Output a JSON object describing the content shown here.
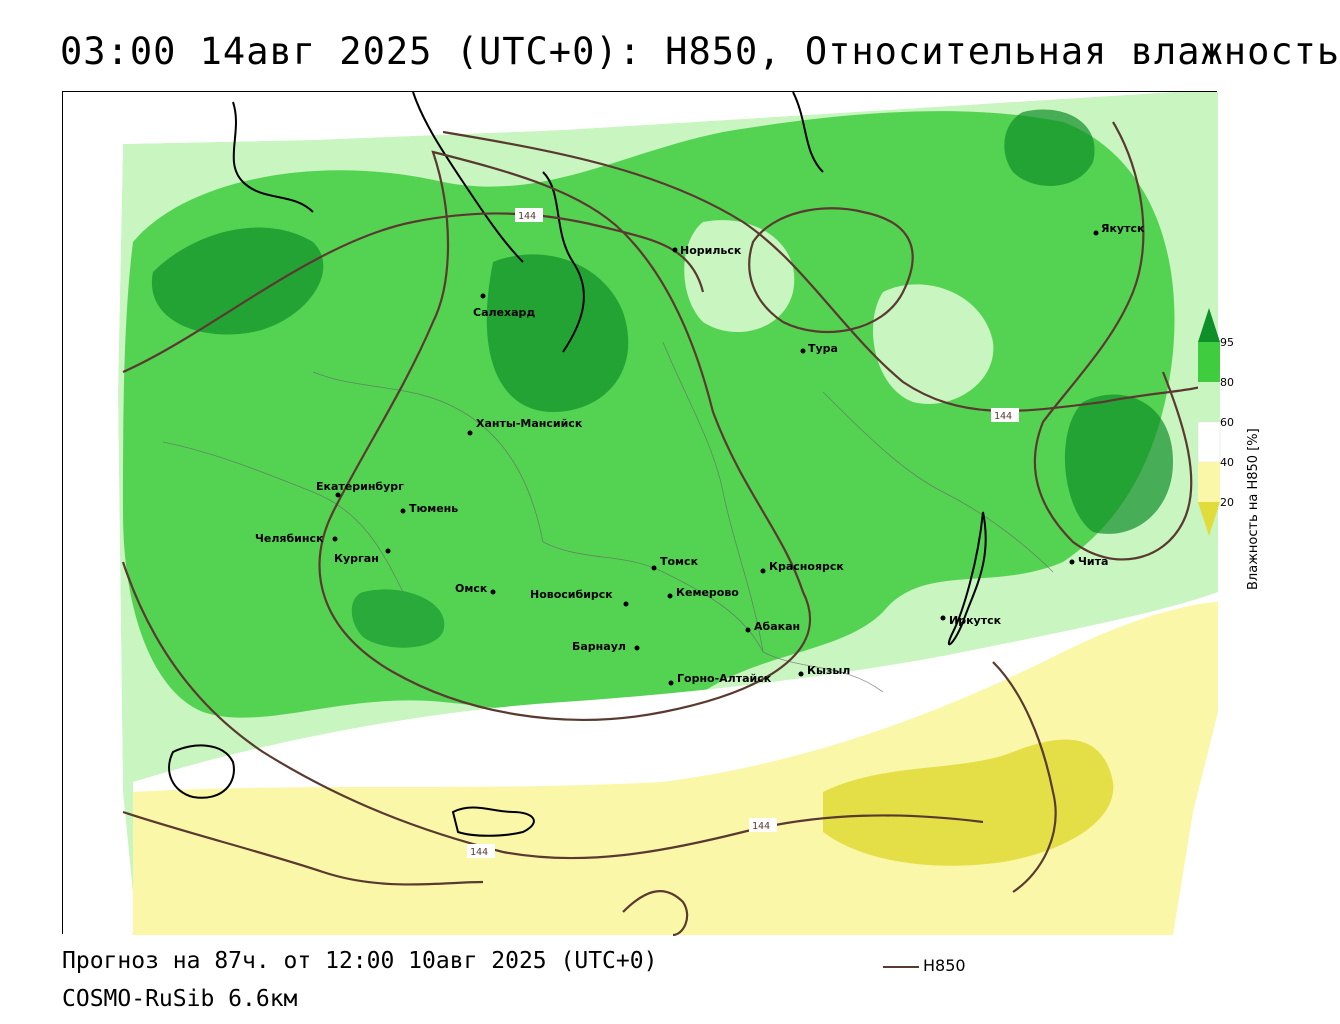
{
  "title": "03:00 14авг 2025 (UTC+0): H850, Относительная влажность",
  "footer": {
    "forecast": "Прогноз на 87ч. от 12:00 10авг 2025 (UTC+0)",
    "model": "COSMO-RuSib 6.6км"
  },
  "legend": {
    "contour_label": "H850",
    "contour_color": "#5a3a30",
    "colorbar_title": "Влажность на H850 [%]",
    "colorbar_ticks": [
      "95",
      "80",
      "60",
      "40",
      "20"
    ],
    "colorbar_colors": [
      "#0f8f2a",
      "#3fcc3f",
      "#c8f5c0",
      "#ffffff",
      "#fbf7a8",
      "#e1db3c"
    ]
  },
  "contour_value_labels": [
    "144",
    "144",
    "144",
    "144"
  ],
  "cities": [
    {
      "name": "Норильск"
    },
    {
      "name": "Якутск"
    },
    {
      "name": "Салехард"
    },
    {
      "name": "Тура"
    },
    {
      "name": "Ханты-Мансийск"
    },
    {
      "name": "Екатеринбург"
    },
    {
      "name": "Тюмень"
    },
    {
      "name": "Челябинск"
    },
    {
      "name": "Курган"
    },
    {
      "name": "Омск"
    },
    {
      "name": "Новосибирск"
    },
    {
      "name": "Томск"
    },
    {
      "name": "Кемерово"
    },
    {
      "name": "Красноярск"
    },
    {
      "name": "Абакан"
    },
    {
      "name": "Барнаул"
    },
    {
      "name": "Горно-Алтайск"
    },
    {
      "name": "Кызыл"
    },
    {
      "name": "Иркутск"
    },
    {
      "name": "Чита"
    }
  ]
}
